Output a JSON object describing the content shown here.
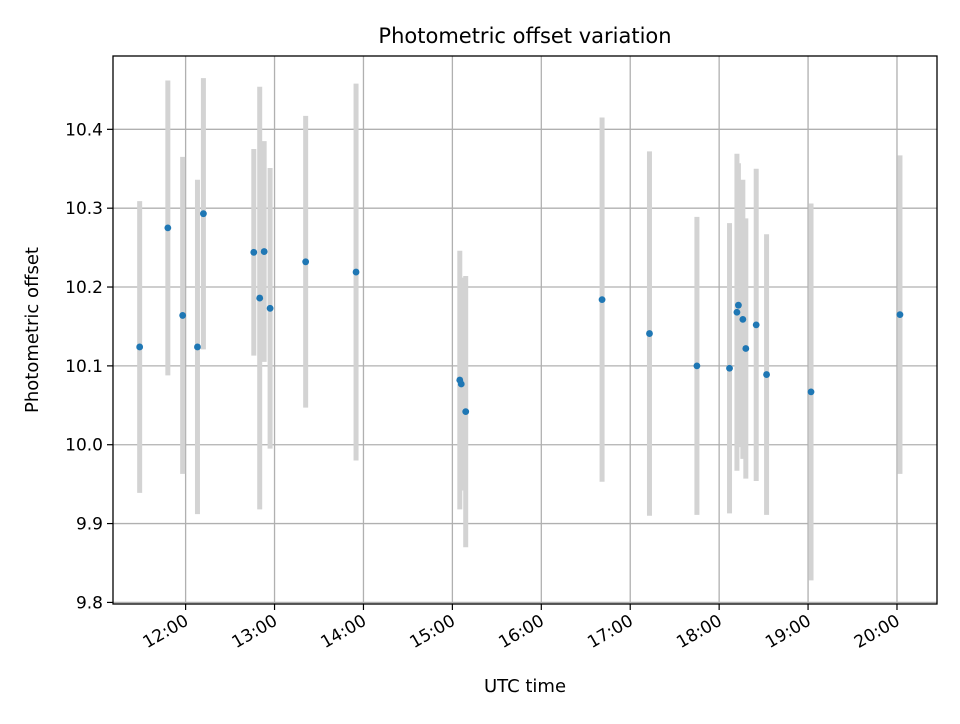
{
  "chart_data": {
    "type": "scatter",
    "title": "Photometric offset variation",
    "xlabel": "UTC time",
    "ylabel": "Photometric offset",
    "xlim": [
      "11:11",
      "20:27"
    ],
    "ylim": [
      9.798,
      10.493
    ],
    "x_ticks": [
      "12:00",
      "13:00",
      "14:00",
      "15:00",
      "16:00",
      "17:00",
      "18:00",
      "19:00",
      "20:00"
    ],
    "y_ticks": [
      "9.8",
      "9.9",
      "10.0",
      "10.1",
      "10.2",
      "10.3",
      "10.4"
    ],
    "grid": true,
    "marker_color": "#1f77b4",
    "errorbar_color": "#d3d3d3",
    "series": [
      {
        "points": [
          {
            "x": "11:29",
            "y": 10.124,
            "err": 0.185
          },
          {
            "x": "11:48",
            "y": 10.275,
            "err": 0.187
          },
          {
            "x": "11:58",
            "y": 10.164,
            "err": 0.201
          },
          {
            "x": "12:08",
            "y": 10.124,
            "err": 0.212
          },
          {
            "x": "12:12",
            "y": 10.293,
            "err": 0.172
          },
          {
            "x": "12:46",
            "y": 10.244,
            "err": 0.131
          },
          {
            "x": "12:50",
            "y": 10.186,
            "err": 0.268
          },
          {
            "x": "12:53",
            "y": 10.245,
            "err": 0.14
          },
          {
            "x": "12:57",
            "y": 10.173,
            "err": 0.178
          },
          {
            "x": "13:21",
            "y": 10.232,
            "err": 0.185
          },
          {
            "x": "13:55",
            "y": 10.219,
            "err": 0.239
          },
          {
            "x": "15:05",
            "y": 10.082,
            "err": 0.164
          },
          {
            "x": "15:06",
            "y": 10.077,
            "err": 0.135
          },
          {
            "x": "15:09",
            "y": 10.042,
            "err": 0.172
          },
          {
            "x": "16:41",
            "y": 10.184,
            "err": 0.231
          },
          {
            "x": "17:13",
            "y": 10.141,
            "err": 0.231
          },
          {
            "x": "17:45",
            "y": 10.1,
            "err": 0.189
          },
          {
            "x": "18:07",
            "y": 10.097,
            "err": 0.184
          },
          {
            "x": "18:12",
            "y": 10.168,
            "err": 0.201
          },
          {
            "x": "18:13",
            "y": 10.177,
            "err": 0.18
          },
          {
            "x": "18:16",
            "y": 10.159,
            "err": 0.177
          },
          {
            "x": "18:18",
            "y": 10.122,
            "err": 0.165
          },
          {
            "x": "18:25",
            "y": 10.152,
            "err": 0.198
          },
          {
            "x": "18:32",
            "y": 10.089,
            "err": 0.178
          },
          {
            "x": "19:02",
            "y": 10.067,
            "err": 0.239
          },
          {
            "x": "20:02",
            "y": 10.165,
            "err": 0.202
          }
        ]
      }
    ]
  }
}
